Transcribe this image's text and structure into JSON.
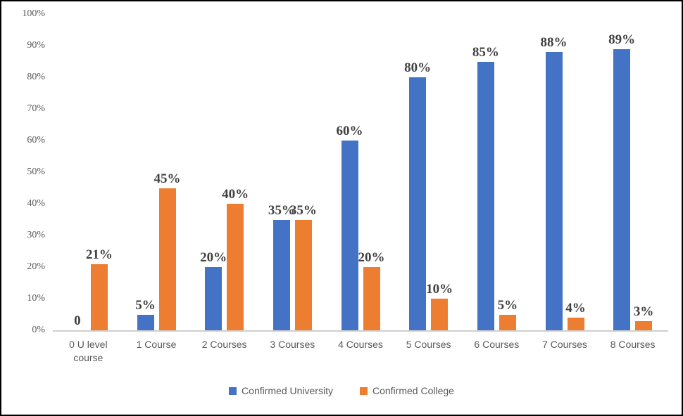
{
  "chart_data": {
    "type": "bar",
    "title": "",
    "categories": [
      "0 U level course",
      "1 Course",
      "2 Courses",
      "3 Courses",
      "4 Courses",
      "5 Courses",
      "6 Courses",
      "7 Courses",
      "8 Courses"
    ],
    "series": [
      {
        "name": "Confirmed University",
        "color": "#4472C4",
        "values": [
          0,
          5,
          20,
          35,
          60,
          80,
          85,
          88,
          89
        ],
        "labels": [
          "0",
          "5%",
          "20%",
          "35%",
          "60%",
          "80%",
          "85%",
          "88%",
          "89%"
        ]
      },
      {
        "name": "Confirmed College",
        "color": "#ED7D31",
        "values": [
          21,
          45,
          40,
          35,
          20,
          10,
          5,
          4,
          3
        ],
        "labels": [
          "21%",
          "45%",
          "40%",
          "35%",
          "20%",
          "10%",
          "5%",
          "4%",
          "3%"
        ]
      }
    ],
    "xlabel": "",
    "ylabel": "",
    "ylim": [
      0,
      100
    ],
    "yticks": [
      "0%",
      "10%",
      "20%",
      "30%",
      "40%",
      "50%",
      "60%",
      "70%",
      "80%",
      "90%",
      "100%"
    ],
    "grid": false,
    "legend_position": "bottom"
  },
  "colors": {
    "background": "#FFFFFF",
    "border": "#000000",
    "axis_line": "#D0CECE",
    "axis_text": "#595959",
    "data_label_text": "#404040"
  }
}
